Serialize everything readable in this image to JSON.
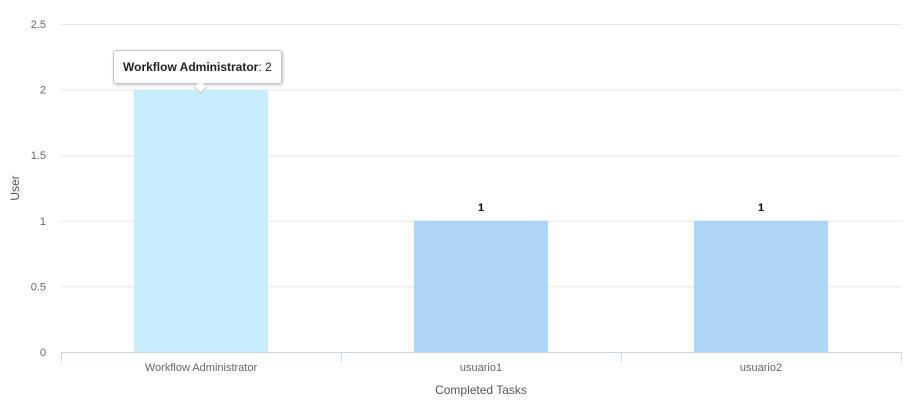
{
  "chart_data": {
    "type": "bar",
    "categories": [
      "Workflow Administrator",
      "usuario1",
      "usuario2"
    ],
    "values": [
      2,
      1,
      1
    ],
    "data_labels": [
      "2",
      "1",
      "1"
    ],
    "xlabel": "Completed Tasks",
    "ylabel": "User",
    "ylim": [
      0,
      2.5
    ],
    "yticks": [
      "0",
      "0.5",
      "1",
      "1.5",
      "2",
      "2.5"
    ],
    "grid": true,
    "highlighted_index": 0,
    "colors": {
      "bar": "#add5f5",
      "bar_hover": "#c8eefc",
      "grid": "#e6e6e6",
      "axis": "#ccd6eb"
    },
    "tooltip": {
      "series": "Workflow Administrator",
      "separator": ": ",
      "value": "2"
    }
  }
}
